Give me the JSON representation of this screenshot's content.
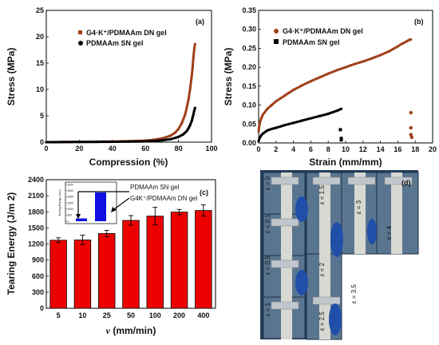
{
  "colors": {
    "dn": "#a0401a",
    "sn": "#000000",
    "bar": "#ee0000",
    "inset_bar": "#1010e0",
    "photo_bg": "#2a4a6a"
  },
  "chart_data": [
    {
      "panel": "(a)",
      "type": "line",
      "xlabel": "Compression (%)",
      "ylabel": "Stress (MPa)",
      "xlim": [
        0,
        100
      ],
      "ylim": [
        0,
        25
      ],
      "xticks": [
        "0",
        "20",
        "40",
        "60",
        "80",
        "100"
      ],
      "yticks": [
        "0",
        "5",
        "10",
        "15",
        "20",
        "25"
      ],
      "legend_position": "top-right",
      "series": [
        {
          "name": "G4·K⁺/PDMAAm DN gel",
          "x": [
            0,
            10,
            20,
            30,
            40,
            50,
            60,
            65,
            70,
            75,
            78,
            80,
            82,
            84,
            85,
            86,
            87,
            88,
            88.5,
            89,
            89.5,
            90
          ],
          "y": [
            0,
            0.02,
            0.05,
            0.08,
            0.12,
            0.18,
            0.3,
            0.45,
            0.7,
            1.2,
            1.8,
            2.5,
            3.6,
            5.2,
            6.5,
            8,
            10,
            12.5,
            14,
            16,
            17.5,
            18.6
          ]
        },
        {
          "name": "PDMAAm SN gel",
          "x": [
            0,
            10,
            20,
            30,
            40,
            50,
            60,
            65,
            70,
            75,
            80,
            83,
            85,
            86,
            87,
            88,
            88.5,
            89,
            89.5,
            90
          ],
          "y": [
            0,
            0.01,
            0.03,
            0.05,
            0.07,
            0.1,
            0.15,
            0.22,
            0.35,
            0.55,
            1.0,
            1.5,
            2.1,
            2.6,
            3.2,
            4.0,
            4.6,
            5.2,
            5.9,
            6.5
          ]
        }
      ]
    },
    {
      "panel": "(b)",
      "type": "line",
      "xlabel": "Strain (mm/mm)",
      "ylabel": "Stress (MPa)",
      "xlim": [
        0,
        20
      ],
      "ylim": [
        0,
        0.35
      ],
      "xticks": [
        "0",
        "2",
        "4",
        "6",
        "8",
        "10",
        "12",
        "14",
        "16",
        "18",
        "20"
      ],
      "yticks": [
        "0.00",
        "0.05",
        "0.10",
        "0.15",
        "0.20",
        "0.25",
        "0.30",
        "0.35"
      ],
      "legend_position": "top-left",
      "series": [
        {
          "name": "G4·K⁺/PDMAAm DN gel",
          "x": [
            0,
            0.1,
            0.3,
            0.5,
            1,
            1.5,
            2,
            3,
            4,
            5,
            6,
            7,
            8,
            9,
            10,
            11,
            12,
            13,
            14,
            15,
            16,
            16.5,
            17,
            17.3,
            17.5
          ],
          "y": [
            0.03,
            0.05,
            0.065,
            0.075,
            0.09,
            0.1,
            0.11,
            0.125,
            0.14,
            0.152,
            0.163,
            0.173,
            0.183,
            0.192,
            0.2,
            0.208,
            0.215,
            0.223,
            0.232,
            0.242,
            0.255,
            0.262,
            0.268,
            0.272,
            0.273
          ]
        },
        {
          "name": "PDMAAm SN gel",
          "x": [
            0,
            0.1,
            0.3,
            0.5,
            1,
            1.5,
            2,
            3,
            4,
            5,
            6,
            7,
            8,
            8.5,
            9,
            9.2,
            9.5
          ],
          "y": [
            0.005,
            0.012,
            0.02,
            0.025,
            0.033,
            0.037,
            0.04,
            0.047,
            0.053,
            0.059,
            0.065,
            0.071,
            0.077,
            0.081,
            0.085,
            0.087,
            0.09
          ]
        }
      ],
      "fragments": [
        {
          "series": "dn",
          "points": [
            [
              17.5,
              0.08
            ],
            [
              17.5,
              0.04
            ],
            [
              17.5,
              0.022
            ],
            [
              17.6,
              0.015
            ]
          ]
        },
        {
          "series": "sn",
          "points": [
            [
              9.4,
              0.035
            ],
            [
              9.5,
              0.012
            ],
            [
              9.5,
              0.008
            ]
          ]
        }
      ]
    },
    {
      "panel": "(c)",
      "type": "bar",
      "xlabel": "v (mm/min)",
      "ylabel": "Tearing Energy (J/m 2)",
      "categories": [
        "5",
        "10",
        "25",
        "50",
        "100",
        "200",
        "400"
      ],
      "values": [
        1270,
        1275,
        1395,
        1640,
        1720,
        1795,
        1825
      ],
      "errors": [
        45,
        90,
        60,
        90,
        165,
        50,
        105
      ],
      "ylim": [
        0,
        2400
      ],
      "yticks": [
        "0",
        "300",
        "600",
        "900",
        "1200",
        "1500",
        "1800",
        "2100",
        "2400"
      ],
      "inset": {
        "type": "bar",
        "ylabel": "Tearing Energy (J/m²)",
        "yticks": [
          "0",
          "500",
          "1000",
          "1500",
          "2000",
          "2500",
          "3000"
        ],
        "ylim": [
          0,
          3000
        ],
        "values": [
          230,
          2350
        ],
        "labels": [
          "PDMAAm SN gel",
          "G4K⁺/PDMAAm DN gel"
        ]
      }
    }
  ],
  "panel_d": {
    "label": "(d)",
    "strain_labels": [
      "ε = 0",
      "ε = 0.1",
      "ε = 0.5",
      "ε = 1",
      "ε = 1.5",
      "ε = 2",
      "ε = 2.5",
      "ε = 3",
      "ε = 3.5",
      "ε = 4"
    ]
  }
}
